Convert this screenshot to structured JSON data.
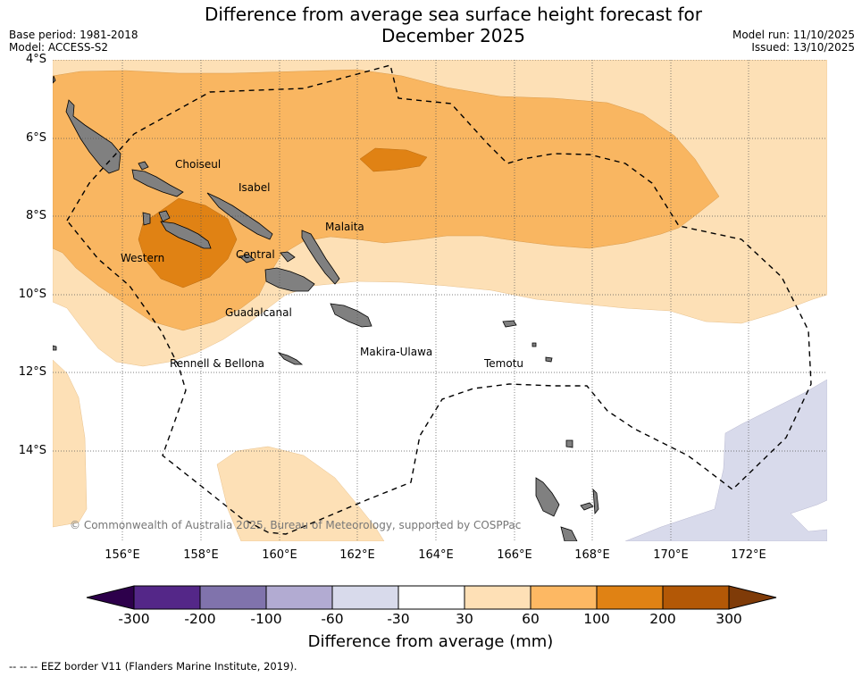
{
  "header": {
    "title_line1": "Difference from average sea surface height forecast for",
    "title_line2": "December 2025",
    "base_period": "Base period: 1981-2018",
    "model": "Model: ACCESS-S2",
    "model_run": "Model run: 11/10/2025",
    "issued": "Issued: 13/10/2025"
  },
  "map": {
    "y_ticks": [
      "4°S",
      "6°S",
      "8°S",
      "10°S",
      "12°S",
      "14°S"
    ],
    "x_ticks": [
      "156°E",
      "158°E",
      "160°E",
      "162°E",
      "164°E",
      "166°E",
      "168°E",
      "170°E",
      "172°E"
    ],
    "provinces": [
      "Choiseul",
      "Isabel",
      "Malaita",
      "Western",
      "Central",
      "Guadalcanal",
      "Makira-Ulawa",
      "Rennell & Bellona",
      "Temotu"
    ],
    "copyright": "© Commonwealth of Australia 2025, Bureau of Meteorology, supported by COSPPac",
    "colors": {
      "c30_60": "#fde0b6",
      "c60_100": "#f9b661",
      "c100_200": "#e08214",
      "neg30_60": "#d8daeb",
      "land": "#808080"
    }
  },
  "colorbar": {
    "bins": [
      "#2d004b",
      "#542788",
      "#8073ac",
      "#b2abd2",
      "#d8daeb",
      "#ffffff",
      "#fee0b6",
      "#fdb863",
      "#e08214",
      "#b35806",
      "#7f3b08"
    ],
    "labels": [
      "-300",
      "-200",
      "-100",
      "-60",
      "-30",
      "30",
      "60",
      "100",
      "200",
      "300"
    ],
    "title": "Difference from average (mm)"
  },
  "legend_text": "--  --  -- EEZ border V11 (Flanders Marine Institute, 2019)."
}
